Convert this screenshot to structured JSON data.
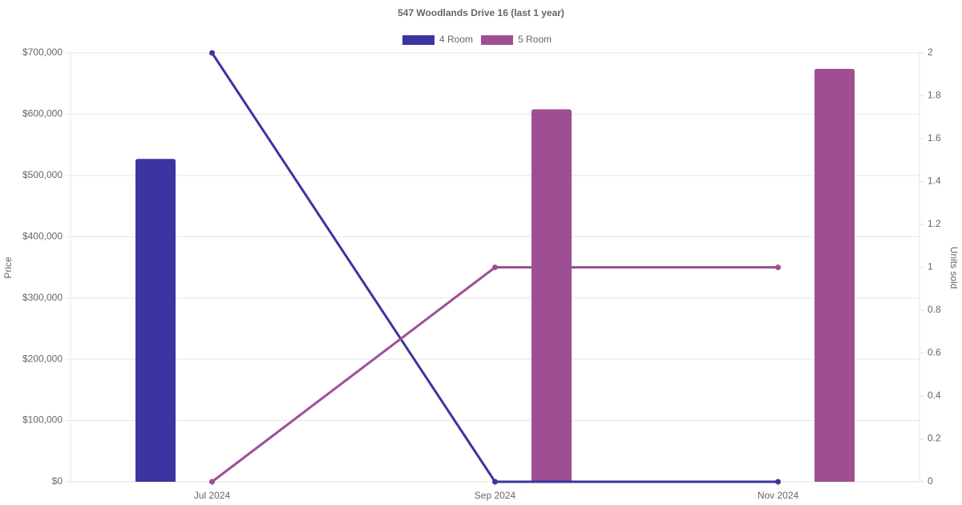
{
  "chart_data": {
    "type": "bar-line",
    "title": "547 Woodlands Drive 16 (last 1 year)",
    "categories": [
      "Jul 2024",
      "Sep 2024",
      "Nov 2024"
    ],
    "y_label": "Price",
    "y2_label": "Units sold",
    "series": [
      {
        "name": "4 Room",
        "type": "bar",
        "color": "#3a35a0",
        "values": [
          527000,
          null,
          null
        ]
      },
      {
        "name": "5 Room",
        "type": "bar",
        "color": "#9e4f94",
        "values": [
          null,
          608000,
          674000
        ]
      },
      {
        "type": "line",
        "axis": "y2",
        "color": "#3a35a0",
        "values": [
          2,
          0,
          0
        ]
      },
      {
        "type": "line",
        "axis": "y2",
        "color": "#9e4f94",
        "values": [
          0,
          1,
          1
        ]
      }
    ],
    "ylim": [
      0,
      700000
    ],
    "yticks": [
      {
        "value": 0,
        "label": "$0"
      },
      {
        "value": 100000,
        "label": "$100,000"
      },
      {
        "value": 200000,
        "label": "$200,000"
      },
      {
        "value": 300000,
        "label": "$300,000"
      },
      {
        "value": 400000,
        "label": "$400,000"
      },
      {
        "value": 500000,
        "label": "$500,000"
      },
      {
        "value": 600000,
        "label": "$600,000"
      },
      {
        "value": 700000,
        "label": "$700,000"
      }
    ],
    "y2lim": [
      0,
      2
    ],
    "y2ticks": [
      0,
      0.2,
      0.4,
      0.6,
      0.8,
      1,
      1.2,
      1.4,
      1.6,
      1.8,
      2
    ],
    "grid": true,
    "legend": "top"
  }
}
